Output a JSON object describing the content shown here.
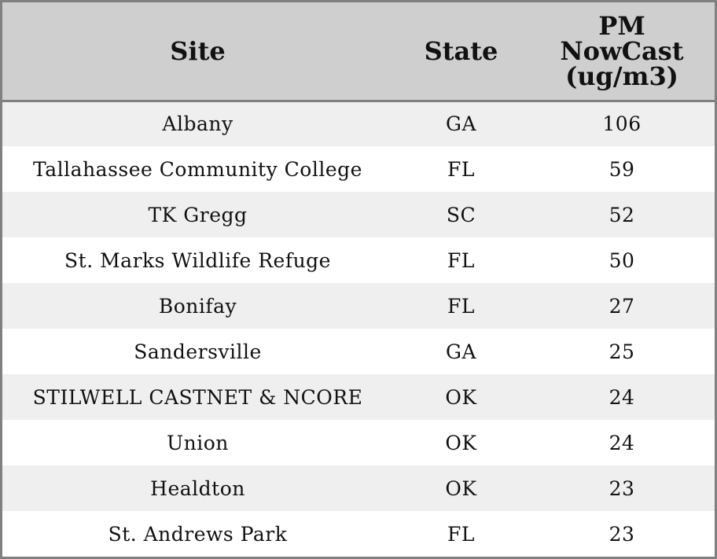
{
  "table": {
    "headers": {
      "site": "Site",
      "state": "State",
      "pm_line1": "PM",
      "pm_line2": "NowCast",
      "pm_line3": "(ug/m3)"
    },
    "rows": [
      {
        "site": "Albany",
        "state": "GA",
        "pm": "106"
      },
      {
        "site": "Tallahassee Community College",
        "state": "FL",
        "pm": "59"
      },
      {
        "site": "TK Gregg",
        "state": "SC",
        "pm": "52"
      },
      {
        "site": "St. Marks Wildlife Refuge",
        "state": "FL",
        "pm": "50"
      },
      {
        "site": "Bonifay",
        "state": "FL",
        "pm": "27"
      },
      {
        "site": "Sandersville",
        "state": "GA",
        "pm": "25"
      },
      {
        "site": "STILWELL CASTNET & NCORE",
        "state": "OK",
        "pm": "24"
      },
      {
        "site": "Union",
        "state": "OK",
        "pm": "24"
      },
      {
        "site": "Healdton",
        "state": "OK",
        "pm": "23"
      },
      {
        "site": "St. Andrews Park",
        "state": "FL",
        "pm": "23"
      }
    ]
  },
  "colors": {
    "header_bg": "#cfcfcf",
    "row_alt_bg": "#efefef",
    "border": "#808080"
  }
}
